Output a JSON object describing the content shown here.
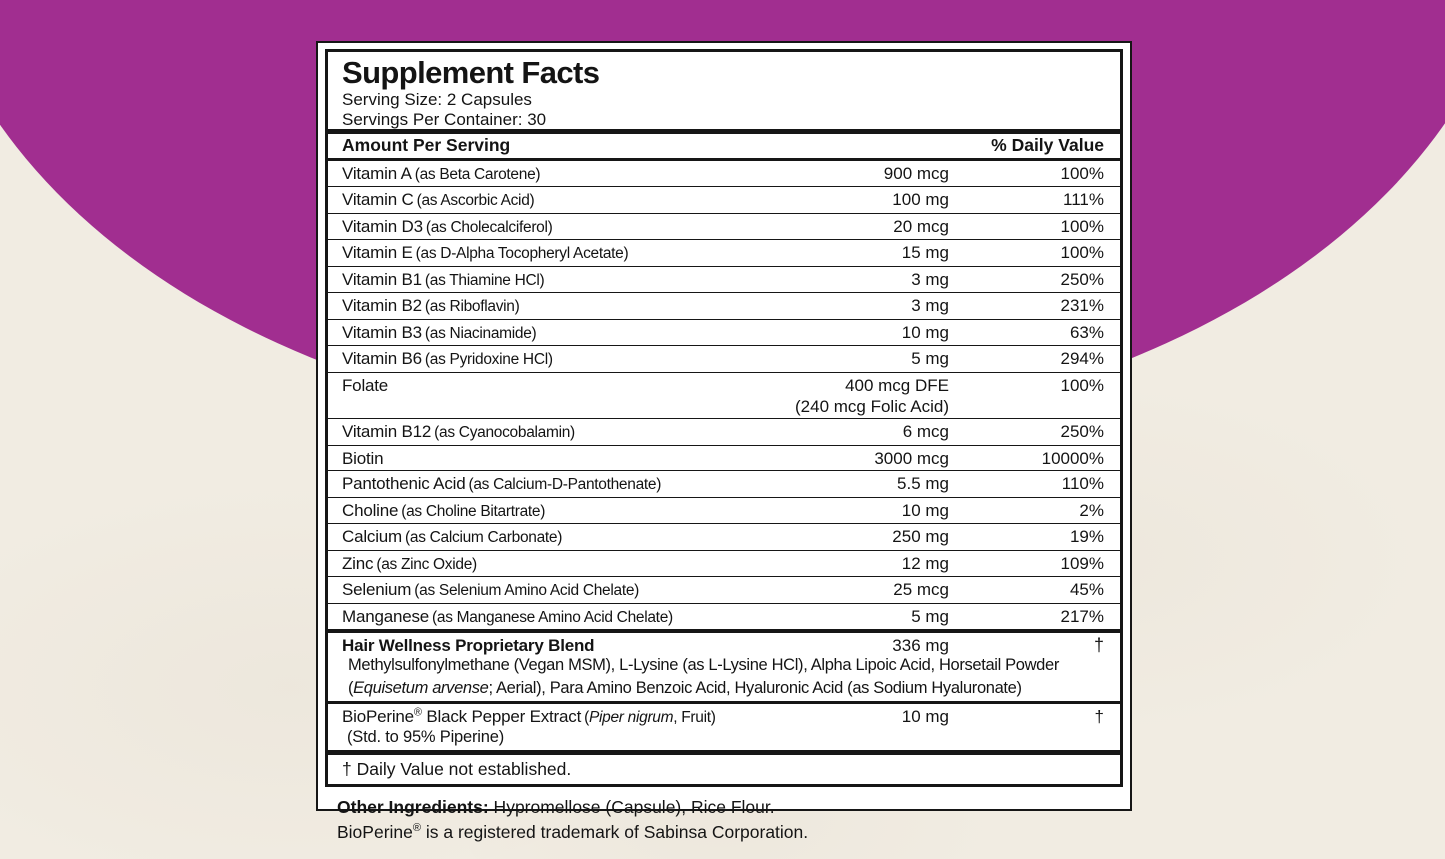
{
  "colors": {
    "background": "#f1ece2",
    "accent_circle": "#a12e90",
    "panel_bg": "#ffffff",
    "rule_color": "#161616"
  },
  "label": {
    "title": "Supplement Facts",
    "serving_size": "Serving Size: 2 Capsules",
    "servings_per_container": "Servings Per Container: 30",
    "columns": {
      "amount": "Amount Per Serving",
      "daily_value": "% Daily Value"
    },
    "rows": [
      {
        "name": "Vitamin A",
        "qualifier": "(as Beta Carotene)",
        "amount": "900 mcg",
        "dv": "100%"
      },
      {
        "name": "Vitamin C",
        "qualifier": "(as Ascorbic Acid)",
        "amount": "100 mg",
        "dv": "111%"
      },
      {
        "name": "Vitamin D3",
        "qualifier": "(as Cholecalciferol)",
        "amount": "20 mcg",
        "dv": "100%"
      },
      {
        "name": "Vitamin E",
        "qualifier": "(as D-Alpha Tocopheryl Acetate)",
        "amount": "15 mg",
        "dv": "100%"
      },
      {
        "name": "Vitamin B1",
        "qualifier": "(as Thiamine HCl)",
        "amount": "3 mg",
        "dv": "250%"
      },
      {
        "name": "Vitamin B2",
        "qualifier": "(as Riboflavin)",
        "amount": "3 mg",
        "dv": "231%"
      },
      {
        "name": "Vitamin B3",
        "qualifier": "(as Niacinamide)",
        "amount": "10 mg",
        "dv": "63%"
      },
      {
        "name": "Vitamin B6",
        "qualifier": "(as Pyridoxine HCl)",
        "amount": "5 mg",
        "dv": "294%"
      },
      {
        "name": "Folate",
        "amount": "400 mcg DFE",
        "amount_note": "(240 mcg Folic Acid)",
        "dv": "100%"
      },
      {
        "name": "Vitamin B12",
        "qualifier": "(as Cyanocobalamin)",
        "amount": "6 mcg",
        "dv": "250%"
      },
      {
        "name": "Biotin",
        "amount": "3000 mcg",
        "dv": "10000%"
      },
      {
        "name": "Pantothenic Acid",
        "qualifier": "(as Calcium-D-Pantothenate)",
        "amount": "5.5 mg",
        "dv": "110%"
      },
      {
        "name": "Choline",
        "qualifier": "(as Choline Bitartrate)",
        "amount": "10 mg",
        "dv": "2%"
      },
      {
        "name": "Calcium",
        "qualifier": "(as Calcium Carbonate)",
        "amount": "250 mg",
        "dv": "19%"
      },
      {
        "name": "Zinc",
        "qualifier": "(as Zinc Oxide)",
        "amount": "12 mg",
        "dv": "109%"
      },
      {
        "name": "Selenium",
        "qualifier": "(as Selenium Amino Acid Chelate)",
        "amount": "25 mcg",
        "dv": "45%"
      },
      {
        "name": "Manganese",
        "qualifier": "(as Manganese Amino Acid Chelate)",
        "amount": "5 mg",
        "dv": "217%"
      }
    ],
    "blend": {
      "name": "Hair Wellness Proprietary Blend",
      "amount": "336 mg",
      "dv": "†",
      "desc_line1": "Methylsulfonylmethane (Vegan MSM), L-Lysine (as L-Lysine HCl), Alpha Lipoic Acid, Horsetail Powder",
      "desc_line2_pre": "(",
      "desc_line2_italic": "Equisetum arvense",
      "desc_line2_post": "; Aerial), Para Amino Benzoic Acid, Hyaluronic Acid (as Sodium Hyaluronate)"
    },
    "bioperine": {
      "brand": "BioPerine",
      "reg": "®",
      "name_rest": " Black Pepper Extract",
      "qual_pre": "(",
      "qual_italic": "Piper nigrum",
      "qual_post": ", Fruit)",
      "amount": "10 mg",
      "dv": "†",
      "sub_line": "(Std. to 95% Piperine)"
    },
    "footnote": "† Daily Value not established.",
    "other_ingredients": {
      "label": "Other Ingredients:",
      "text": " Hypromellose (Capsule), Rice Flour."
    },
    "trademark": {
      "brand": "BioPerine",
      "reg": "®",
      "text": " is a registered trademark of Sabinsa Corporation."
    }
  }
}
